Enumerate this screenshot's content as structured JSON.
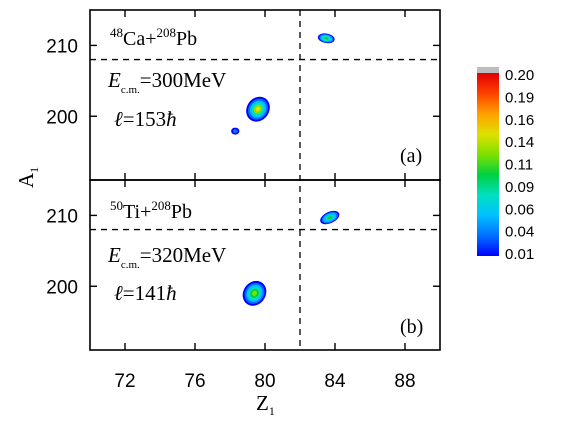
{
  "chart_data": {
    "type": "heatmap",
    "xlabel": "Z",
    "xlabel_sub": "1",
    "ylabel": "A",
    "ylabel_sub": "1",
    "x_ticks": [
      72,
      76,
      80,
      84,
      88
    ],
    "xlim": [
      70,
      90
    ],
    "colorbar": {
      "ticks": [
        "0.20",
        "0.19",
        "0.16",
        "0.14",
        "0.11",
        "0.09",
        "0.06",
        "0.04",
        "0.01"
      ],
      "min": 0.01,
      "max": 0.2,
      "colors": [
        "#0000ff",
        "#0070ff",
        "#00c0ff",
        "#00e0c0",
        "#00d040",
        "#80e000",
        "#e0e000",
        "#ffa000",
        "#ff4000",
        "#e00000"
      ]
    },
    "reference_lines": {
      "z": 82,
      "a": 208
    },
    "panels": [
      {
        "id": "a",
        "tag": "(a)",
        "reaction": {
          "proj_mass": "48",
          "proj": "Ca+",
          "targ_mass": "208",
          "targ": "Pb"
        },
        "energy": {
          "sym": "E",
          "sub": "c.m.",
          "value": "=300MeV"
        },
        "ang": {
          "sym": "ℓ",
          "value": "=153",
          "hbar": "ħ"
        },
        "ylim": [
          191,
          215
        ],
        "y_ticks": [
          200,
          210
        ],
        "blobs": [
          {
            "z": 83.5,
            "a": 211.0,
            "rz": 0.45,
            "ra": 0.65,
            "tilt": -10,
            "peak": 0.1
          },
          {
            "z": 79.6,
            "a": 201.0,
            "rz": 0.55,
            "ra": 3.2,
            "tilt": 55,
            "peak": 0.13
          },
          {
            "z": 78.3,
            "a": 197.9,
            "rz": 0.2,
            "ra": 0.3,
            "tilt": 0,
            "peak": 0.03
          }
        ]
      },
      {
        "id": "b",
        "tag": "(b)",
        "reaction": {
          "proj_mass": "50",
          "proj": "Ti+",
          "targ_mass": "208",
          "targ": "Pb"
        },
        "energy": {
          "sym": "E",
          "sub": "c.m.",
          "value": "=320MeV"
        },
        "ang": {
          "sym": "ℓ",
          "value": "=141",
          "hbar": "ħ"
        },
        "ylim": [
          191,
          215
        ],
        "y_ticks": [
          200,
          210
        ],
        "blobs": [
          {
            "z": 83.7,
            "a": 209.7,
            "rz": 0.55,
            "ra": 0.9,
            "tilt": 25,
            "peak": 0.09
          },
          {
            "z": 79.4,
            "a": 199.0,
            "rz": 0.55,
            "ra": 3.2,
            "tilt": 55,
            "peak": 0.12
          }
        ]
      }
    ]
  }
}
